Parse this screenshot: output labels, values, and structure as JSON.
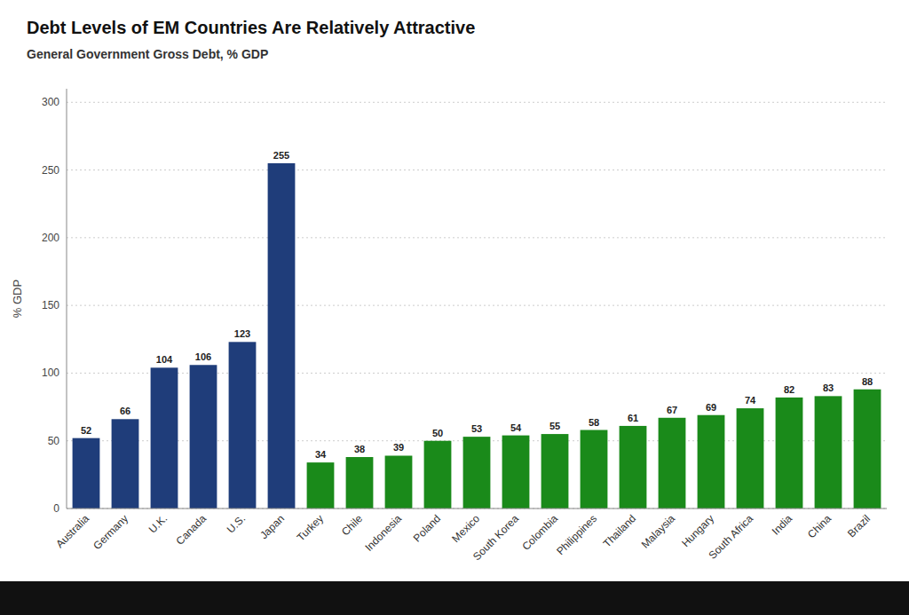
{
  "chart_data": {
    "type": "bar",
    "title": "Debt Levels of EM Countries Are Relatively Attractive",
    "subtitle": "General Government Gross Debt, % GDP",
    "ylabel": "% GDP",
    "categories": [
      "Australia",
      "Germany",
      "U.K.",
      "Canada",
      "U.S.",
      "Japan",
      "Turkey",
      "Chile",
      "Indonesia",
      "Poland",
      "Mexico",
      "South Korea",
      "Colombia",
      "Philippines",
      "Thailand",
      "Malaysia",
      "Hungary",
      "South Africa",
      "India",
      "China",
      "Brazil"
    ],
    "values": [
      52,
      66,
      104,
      106,
      123,
      255,
      34,
      38,
      39,
      50,
      53,
      54,
      55,
      58,
      61,
      67,
      69,
      74,
      82,
      83,
      88
    ],
    "colors": [
      "#1f3d7a",
      "#1f3d7a",
      "#1f3d7a",
      "#1f3d7a",
      "#1f3d7a",
      "#1f3d7a",
      "#1a8a1a",
      "#1a8a1a",
      "#1a8a1a",
      "#1a8a1a",
      "#1a8a1a",
      "#1a8a1a",
      "#1a8a1a",
      "#1a8a1a",
      "#1a8a1a",
      "#1a8a1a",
      "#1a8a1a",
      "#1a8a1a",
      "#1a8a1a",
      "#1a8a1a",
      "#1a8a1a"
    ],
    "ylim": [
      0,
      310
    ],
    "yticks": [
      0,
      50,
      100,
      150,
      200,
      250,
      300
    ],
    "grid": true,
    "data_labels": true
  }
}
